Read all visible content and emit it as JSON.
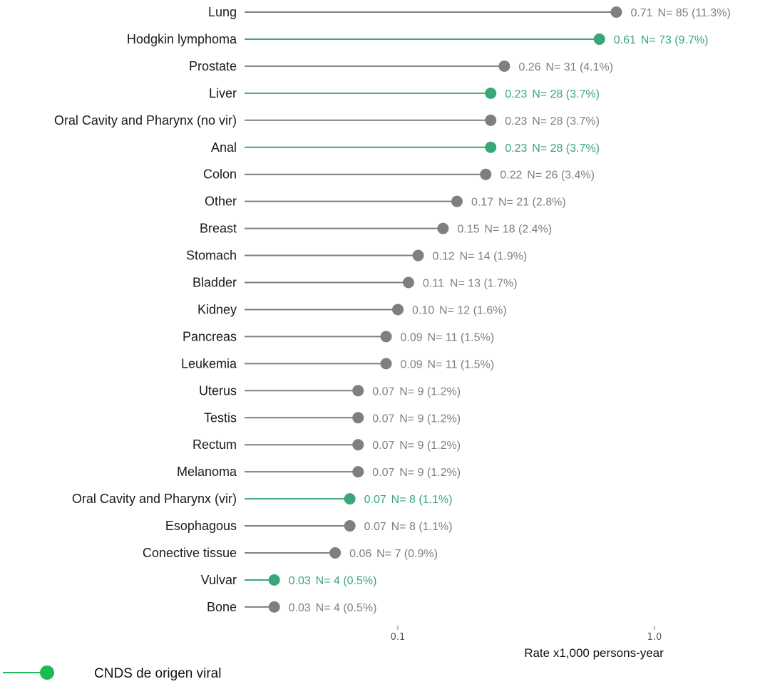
{
  "chart_data": {
    "type": "lollipop",
    "x_scale": "log",
    "xlabel": "Rate x1,000 persons-year",
    "x_ticks": [
      {
        "value": 0.1,
        "label": "0.1"
      },
      {
        "value": 1.0,
        "label": "1.0"
      }
    ],
    "colors": {
      "viral": "#3aa77a",
      "non_viral": "#7f7f7f",
      "legend_dot": "#1db954"
    },
    "legend": [
      {
        "label": "CNDS de origen viral",
        "group": "viral"
      }
    ],
    "points": [
      {
        "category": "Lung",
        "rate": 0.71,
        "rate_label": "0.71",
        "n_label": "N= 85 (11.3%)",
        "viral": false
      },
      {
        "category": "Hodgkin lymphoma",
        "rate": 0.61,
        "rate_label": "0.61",
        "n_label": "N= 73 (9.7%)",
        "viral": true
      },
      {
        "category": "Prostate",
        "rate": 0.26,
        "rate_label": "0.26",
        "n_label": "N= 31 (4.1%)",
        "viral": false
      },
      {
        "category": "Liver",
        "rate": 0.23,
        "rate_label": "0.23",
        "n_label": "N= 28 (3.7%)",
        "viral": true
      },
      {
        "category": "Oral Cavity and Pharynx (no vir)",
        "rate": 0.23,
        "rate_label": "0.23",
        "n_label": "N= 28 (3.7%)",
        "viral": false
      },
      {
        "category": "Anal",
        "rate": 0.23,
        "rate_label": "0.23",
        "n_label": "N= 28 (3.7%)",
        "viral": true
      },
      {
        "category": "Colon",
        "rate": 0.22,
        "rate_label": "0.22",
        "n_label": "N= 26 (3.4%)",
        "viral": false
      },
      {
        "category": "Other",
        "rate": 0.17,
        "rate_label": "0.17",
        "n_label": "N= 21 (2.8%)",
        "viral": false
      },
      {
        "category": "Breast",
        "rate": 0.15,
        "rate_label": "0.15",
        "n_label": "N= 18 (2.4%)",
        "viral": false
      },
      {
        "category": "Stomach",
        "rate": 0.12,
        "rate_label": "0.12",
        "n_label": "N= 14 (1.9%)",
        "viral": false
      },
      {
        "category": "Bladder",
        "rate": 0.11,
        "rate_label": "0.11",
        "n_label": "N= 13 (1.7%)",
        "viral": false
      },
      {
        "category": "Kidney",
        "rate": 0.1,
        "rate_label": "0.10",
        "n_label": "N= 12 (1.6%)",
        "viral": false
      },
      {
        "category": "Pancreas",
        "rate": 0.09,
        "rate_label": "0.09",
        "n_label": "N= 11 (1.5%)",
        "viral": false
      },
      {
        "category": "Leukemia",
        "rate": 0.09,
        "rate_label": "0.09",
        "n_label": "N= 11 (1.5%)",
        "viral": false
      },
      {
        "category": "Uterus",
        "rate": 0.07,
        "rate_label": "0.07",
        "n_label": "N= 9 (1.2%)",
        "viral": false
      },
      {
        "category": "Testis",
        "rate": 0.07,
        "rate_label": "0.07",
        "n_label": "N= 9 (1.2%)",
        "viral": false
      },
      {
        "category": "Rectum",
        "rate": 0.07,
        "rate_label": "0.07",
        "n_label": "N= 9 (1.2%)",
        "viral": false
      },
      {
        "category": "Melanoma",
        "rate": 0.07,
        "rate_label": "0.07",
        "n_label": "N= 9 (1.2%)",
        "viral": false
      },
      {
        "category": "Oral Cavity and Pharynx (vir)",
        "rate": 0.065,
        "rate_label": "0.07",
        "n_label": "N= 8 (1.1%)",
        "viral": true
      },
      {
        "category": "Esophagous",
        "rate": 0.065,
        "rate_label": "0.07",
        "n_label": "N= 8 (1.1%)",
        "viral": false
      },
      {
        "category": "Conective tissue",
        "rate": 0.057,
        "rate_label": "0.06",
        "n_label": "N= 7 (0.9%)",
        "viral": false
      },
      {
        "category": "Vulvar",
        "rate": 0.033,
        "rate_label": "0.03",
        "n_label": "N= 4 (0.5%)",
        "viral": true
      },
      {
        "category": "Bone",
        "rate": 0.033,
        "rate_label": "0.03",
        "n_label": "N= 4 (0.5%)",
        "viral": false
      }
    ]
  }
}
